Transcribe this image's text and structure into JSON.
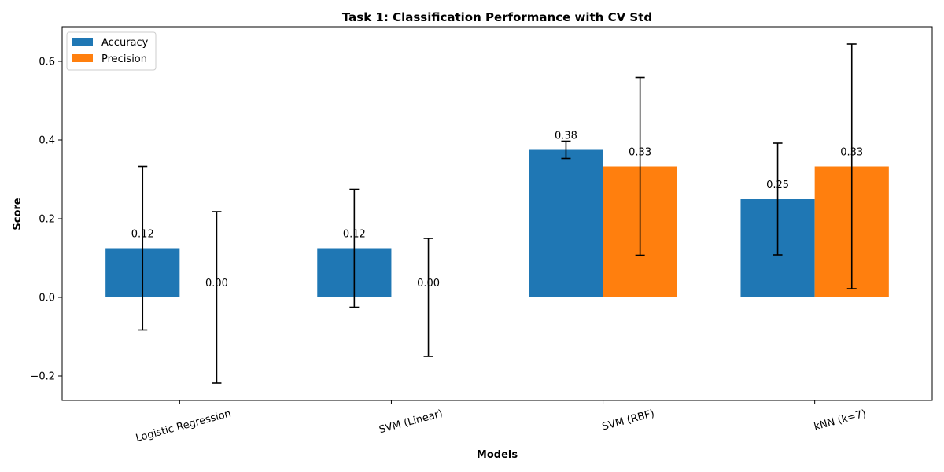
{
  "chart_data": {
    "type": "bar",
    "title": "Task 1: Classification Performance with CV Std",
    "xlabel": "Models",
    "ylabel": "Score",
    "categories": [
      "Logistic Regression",
      "SVM (Linear)",
      "SVM (RBF)",
      "kNN (k=7)"
    ],
    "series": [
      {
        "name": "Accuracy",
        "color": "#1f77b4",
        "values": [
          0.125,
          0.125,
          0.375,
          0.25
        ],
        "std": [
          0.208,
          0.15,
          0.022,
          0.142
        ],
        "labels": [
          "0.12",
          "0.12",
          "0.38",
          "0.25"
        ]
      },
      {
        "name": "Precision",
        "color": "#ff7f0e",
        "values": [
          0.0,
          0.0,
          0.333,
          0.333
        ],
        "std": [
          0.218,
          0.15,
          0.226,
          0.311
        ],
        "labels": [
          "0.00",
          "0.00",
          "0.33",
          "0.33"
        ]
      }
    ],
    "ylim": [
      -0.262,
      0.688
    ],
    "yticks": [
      -0.2,
      0.0,
      0.2,
      0.4,
      0.6
    ],
    "ytick_labels": [
      "−0.2",
      "0.0",
      "0.2",
      "0.4",
      "0.6"
    ],
    "legend_position": "top-left",
    "grid": false,
    "x_tick_rotation": 15
  }
}
